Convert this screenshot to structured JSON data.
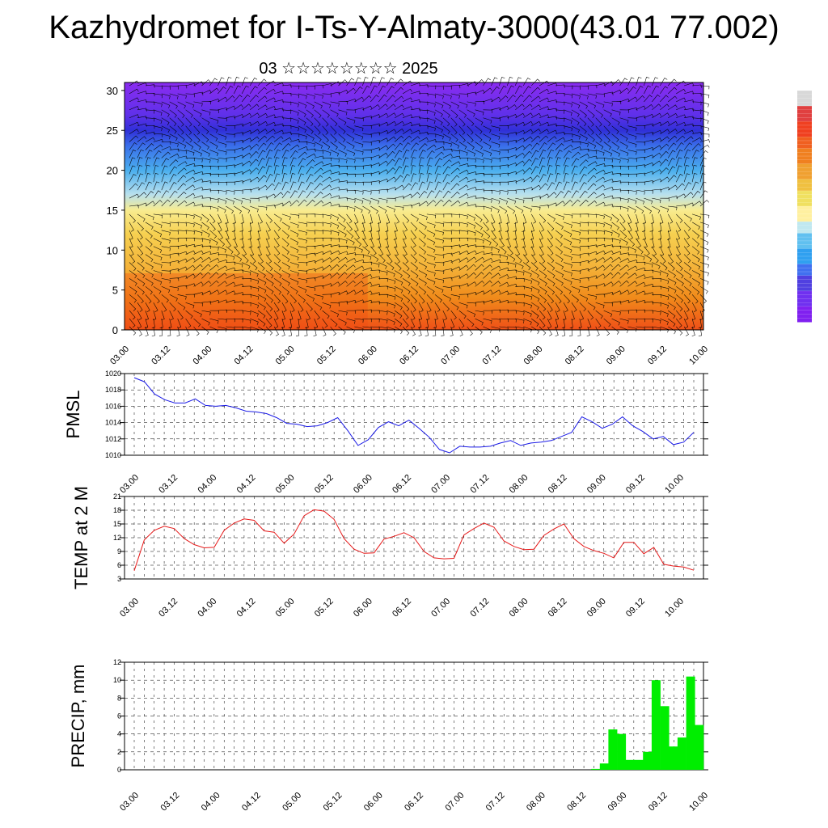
{
  "title": "Kazhydromet for I-Ts-Y-Almaty-3000(43.01 77.002)",
  "subtitle": "03 ☆☆☆☆☆☆☆☆ 2025",
  "colors": {
    "pmsl_line": "#1a1ae6",
    "temp_line": "#e61a1a",
    "precip_bar": "#00ee00",
    "barb": "#000000"
  },
  "chart_data": [
    {
      "type": "heatmap",
      "title": "",
      "xlabel": "",
      "ylabel": "",
      "x_ticks": [
        "03.00",
        "03.12",
        "04.00",
        "04.12",
        "05.00",
        "05.12",
        "06.00",
        "06.12",
        "07.00",
        "07.12",
        "08.00",
        "08.12",
        "09.00",
        "09.12",
        "10.00"
      ],
      "y_ticks": [
        "0",
        "5",
        "10",
        "15",
        "20",
        "25",
        "30"
      ],
      "ylim": [
        0,
        31
      ],
      "colorbar": [
        "#d8d8d8",
        "#e04040",
        "#f04020",
        "#f06020",
        "#f08020",
        "#f0a030",
        "#f0c040",
        "#f0e060",
        "#fff0a0",
        "#c0e8f0",
        "#60c0f0",
        "#30a0f0",
        "#4070f0",
        "#5040e0",
        "#7030f0",
        "#8020f0"
      ],
      "levels": [
        {
          "z": 0,
          "color": "#f05018"
        },
        {
          "z": 4,
          "color": "#f08a1a"
        },
        {
          "z": 8,
          "color": "#f4b43a"
        },
        {
          "z": 12,
          "color": "#f6d050"
        },
        {
          "z": 15,
          "color": "#f8ec90"
        },
        {
          "z": 17,
          "color": "#b8e0ee"
        },
        {
          "z": 20,
          "color": "#4aaeee"
        },
        {
          "z": 23,
          "color": "#3a70ea"
        },
        {
          "z": 25,
          "color": "#3030d8"
        },
        {
          "z": 27,
          "color": "#6030ea"
        },
        {
          "z": 31,
          "color": "#8a2cf0"
        }
      ]
    },
    {
      "type": "line",
      "title": "",
      "ylabel": "PMSL",
      "x_ticks": [
        "03.00",
        "03.12",
        "04.00",
        "04.12",
        "05.00",
        "05.12",
        "06.00",
        "06.12",
        "07.00",
        "07.12",
        "08.00",
        "08.12",
        "09.00",
        "09.12",
        "10.00"
      ],
      "y_ticks": [
        "1010",
        "1012",
        "1014",
        "1016",
        "1018",
        "1020"
      ],
      "ylim": [
        1010,
        1020
      ],
      "series": [
        {
          "values": [
            1019.5,
            1019.0,
            1017.5,
            1016.8,
            1016.4,
            1016.4,
            1016.9,
            1016.1,
            1016.0,
            1016.1,
            1015.8,
            1015.4,
            1015.3,
            1015.1,
            1014.6,
            1013.9,
            1013.8,
            1013.5,
            1013.6,
            1014.0,
            1014.6,
            1013.0,
            1011.2,
            1011.9,
            1013.4,
            1014.1,
            1013.6,
            1014.3,
            1013.3,
            1012.2,
            1010.7,
            1010.3,
            1011.1,
            1011.0,
            1011.0,
            1011.1,
            1011.5,
            1011.8,
            1011.2,
            1011.5,
            1011.6,
            1011.8,
            1012.3,
            1012.8,
            1014.7,
            1014.1,
            1013.3,
            1013.8,
            1014.7,
            1013.6,
            1012.9,
            1012.0,
            1012.3,
            1011.3,
            1011.6,
            1012.8
          ]
        }
      ]
    },
    {
      "type": "line",
      "title": "",
      "ylabel": "TEMP at 2 M",
      "x_ticks": [
        "03.00",
        "03.12",
        "04.00",
        "04.12",
        "05.00",
        "05.12",
        "06.00",
        "06.12",
        "07.00",
        "07.12",
        "08.00",
        "08.12",
        "09.00",
        "09.12",
        "10.00"
      ],
      "y_ticks": [
        "3",
        "6",
        "9",
        "12",
        "15",
        "18",
        "21"
      ],
      "ylim": [
        3,
        21
      ],
      "series": [
        {
          "values": [
            4.8,
            11.5,
            13.6,
            14.5,
            14.0,
            11.8,
            10.5,
            9.8,
            9.9,
            13.6,
            15.2,
            16.1,
            15.8,
            13.5,
            13.2,
            10.8,
            12.8,
            16.8,
            18.1,
            17.8,
            16.0,
            11.8,
            9.5,
            8.6,
            8.7,
            11.7,
            12.3,
            13.1,
            12.0,
            9.0,
            7.6,
            7.4,
            7.5,
            12.6,
            14.0,
            15.2,
            14.3,
            11.3,
            10.1,
            9.4,
            9.5,
            12.5,
            13.9,
            15.0,
            11.8,
            10.1,
            9.2,
            8.6,
            7.6,
            11.0,
            11.0,
            8.5,
            9.9,
            6.2,
            5.8,
            5.6,
            4.9
          ]
        }
      ]
    },
    {
      "type": "bar",
      "title": "",
      "ylabel": "PRECIP, mm",
      "x_ticks": [
        "03.00",
        "03.12",
        "04.00",
        "04.12",
        "05.00",
        "05.12",
        "06.00",
        "06.12",
        "07.00",
        "07.12",
        "08.00",
        "08.12",
        "09.00",
        "09.12",
        "10.00"
      ],
      "y_ticks": [
        "0",
        "2",
        "4",
        "6",
        "8",
        "10",
        "12"
      ],
      "ylim": [
        0,
        12
      ],
      "values": [
        0,
        0,
        0,
        0,
        0,
        0,
        0,
        0,
        0,
        0,
        0,
        0,
        0,
        0,
        0,
        0,
        0,
        0,
        0,
        0,
        0,
        0,
        0,
        0,
        0,
        0,
        0,
        0,
        0,
        0,
        0,
        0,
        0,
        0,
        0,
        0,
        0,
        0,
        0,
        0,
        0,
        0,
        0,
        0,
        0,
        0,
        0,
        0,
        0,
        0,
        0,
        0,
        0,
        0,
        0.1,
        0.7,
        4.5,
        4.0,
        1.1,
        1.1,
        2.0,
        10.0,
        7.1,
        2.6,
        3.6,
        10.4,
        5.0
      ]
    }
  ]
}
